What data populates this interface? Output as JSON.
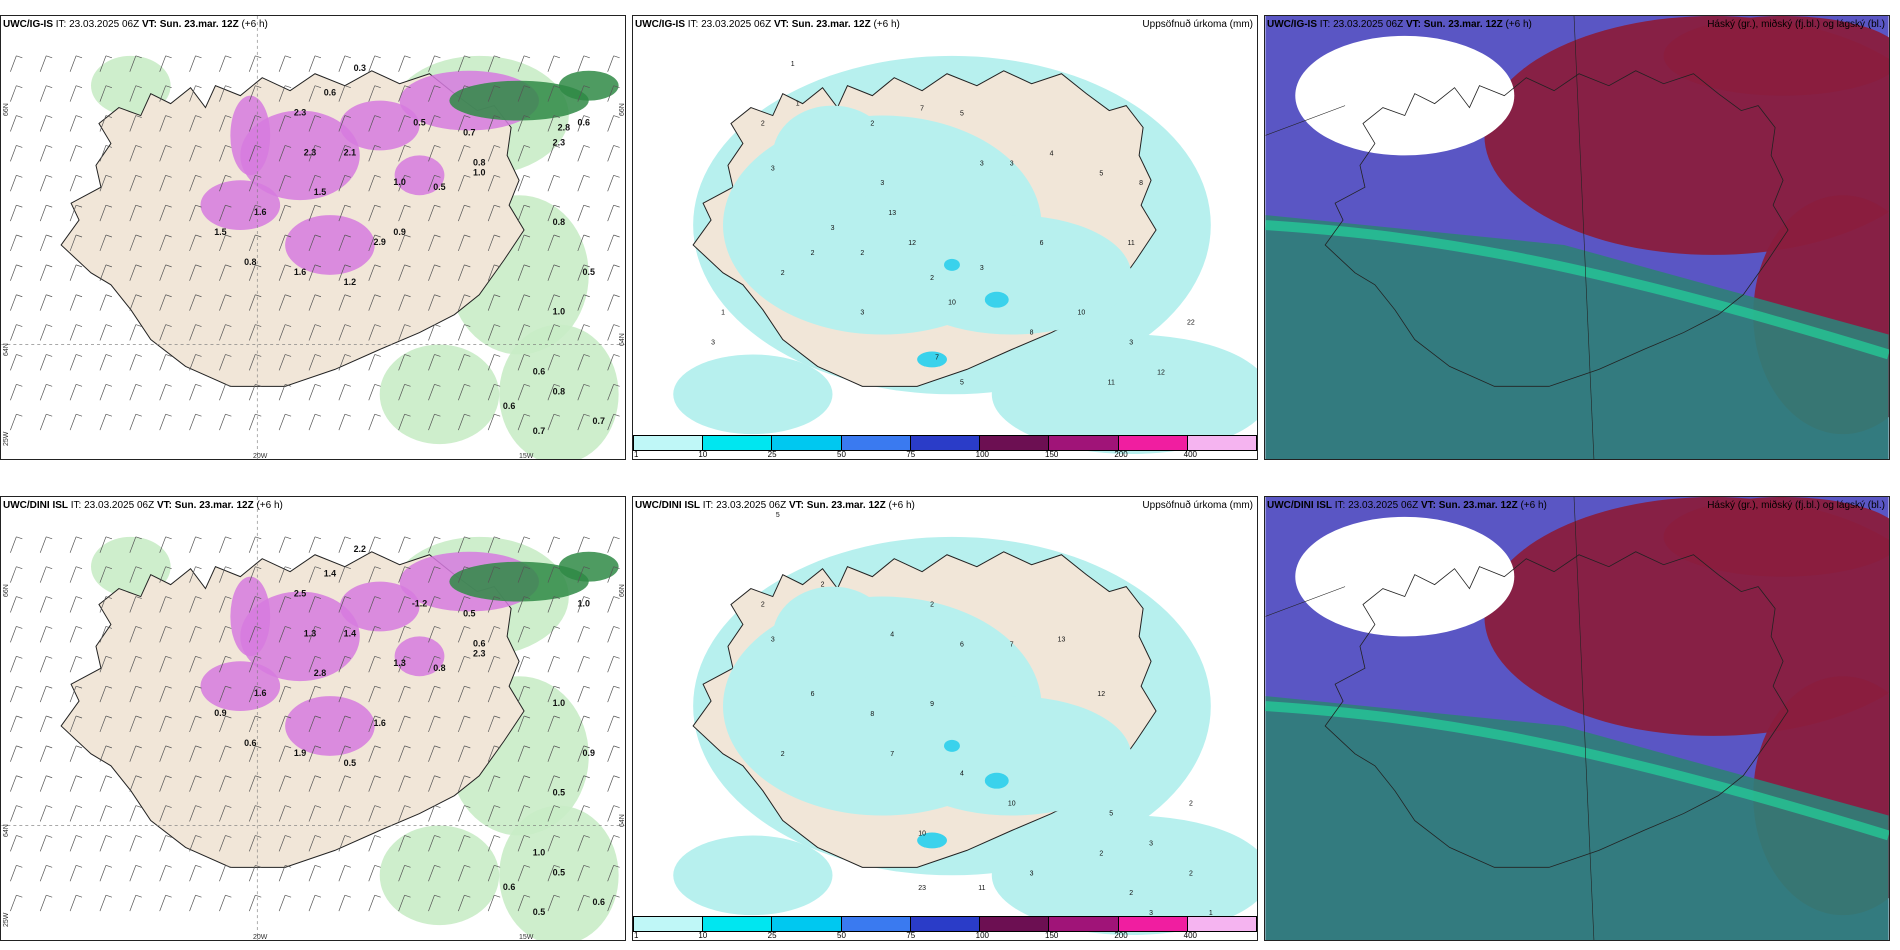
{
  "colors": {
    "land": "#f1e6d8",
    "precip_light": "#b7f0ee",
    "pink": "#d67adf",
    "green_light": "#c9ecc6",
    "green_dark": "#2f8a45",
    "cloud_dark": "#8a1d3e",
    "cloud_mid": "#5a56c4",
    "cloud_low": "#2f7f78"
  },
  "rows": [
    {
      "model": "UWC/IG-IS",
      "it_label": "IT:",
      "it_value": "23.03.2025 06Z",
      "vt_label": "VT:",
      "vt_value": "Sun. 23.mar. 12Z",
      "lead": "(+6 h)"
    },
    {
      "model": "UWC/DINI ISL",
      "it_label": "IT:",
      "it_value": "23.03.2025 06Z",
      "vt_label": "VT:",
      "vt_value": "Sun. 23.mar. 12Z",
      "lead": "(+6 h)"
    }
  ],
  "titles": {
    "precip": "Uppsöfnuð úrkoma (mm)",
    "clouds": "Háský (gr.), miðský (fj.bl.) og lágský (bl.)"
  },
  "legend": {
    "ticks": [
      "1",
      "10",
      "25",
      "50",
      "75",
      "100",
      "150",
      "200",
      "400"
    ],
    "colors": [
      "#bff7f7",
      "#00e6f0",
      "#00c8f0",
      "#3a7af0",
      "#2a3cc8",
      "#6c0f52",
      "#a01478",
      "#f01ea0",
      "#f5b4f0"
    ]
  },
  "axes": {
    "lon": [
      "20W",
      "15W"
    ],
    "lat_top": [
      "66N",
      "64N",
      "25W"
    ],
    "lat_right": [
      "66N",
      "64N"
    ]
  },
  "top_left_values": [
    "0.3",
    "0.5",
    "0.7",
    "2.3",
    "2.1",
    "1.0",
    "2.3",
    "0.6",
    "0.8",
    "1.6",
    "1.2",
    "1.5",
    "1.6",
    "1.5",
    "2.9",
    "1.0",
    "0.8",
    "0.5",
    "1.0",
    "0.6",
    "0.8",
    "0.7",
    "0.7",
    "0.6",
    "0.8",
    "0.5",
    "0.6",
    "2.8",
    "2.3",
    "0.9"
  ],
  "bottom_left_values": [
    "2.2",
    "-1.2",
    "0.5",
    "1.3",
    "1.4",
    "2.3",
    "2.5",
    "1.4",
    "0.6",
    "1.9",
    "0.5",
    "0.9",
    "1.6",
    "2.8",
    "1.6",
    "1.3",
    "1.0",
    "0.9",
    "0.5",
    "1.0",
    "0.5",
    "0.6",
    "0.5",
    "0.6",
    "0.6",
    "0.8",
    "1.0"
  ],
  "top_mid_values": [
    "1",
    "1",
    "2",
    "3",
    "3",
    "2",
    "7",
    "5",
    "3",
    "3",
    "4",
    "5",
    "8",
    "11",
    "6",
    "3",
    "2",
    "2",
    "13",
    "12",
    "3",
    "10",
    "7",
    "5",
    "8",
    "10",
    "3",
    "12",
    "22",
    "11",
    "3",
    "2",
    "2",
    "1",
    "3"
  ],
  "bottom_mid_values": [
    "5",
    "2",
    "2",
    "3",
    "4",
    "2",
    "6",
    "7",
    "13",
    "12",
    "9",
    "7",
    "4",
    "10",
    "10",
    "5",
    "3",
    "2",
    "23",
    "11",
    "3",
    "1",
    "2",
    "2",
    "3",
    "2",
    "1",
    "8",
    "6",
    "2"
  ]
}
